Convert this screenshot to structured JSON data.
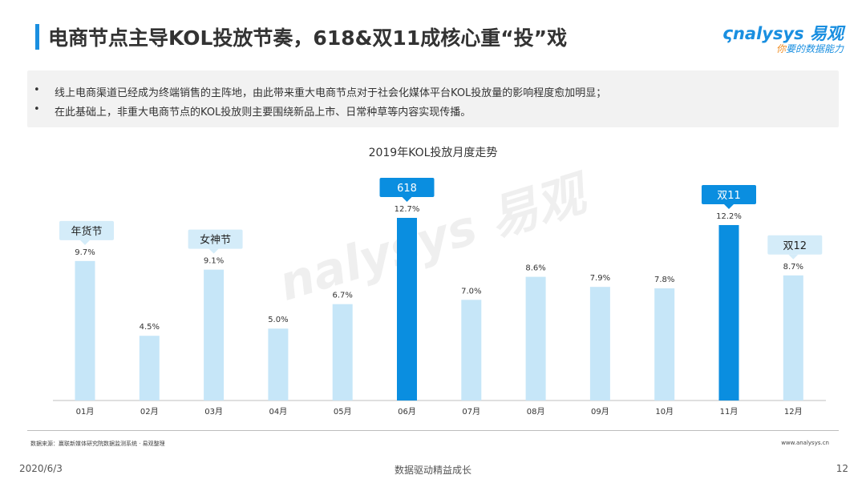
{
  "header": {
    "title": "电商节点主导KOL投放节奏，618&双11成核心重“投”戏",
    "logo_main": "nalysys 易观",
    "logo_sub_accent": "你",
    "logo_sub": "要的数据能力"
  },
  "summary": {
    "bullets": [
      "线上电商渠道已经成为终端销售的主阵地，由此带来重大电商节点对于社会化媒体平台KOL投放量的影响程度愈加明显；",
      "在此基础上，非重大电商节点的KOL投放则主要围绕新品上市、日常种草等内容实现传播。"
    ],
    "bullet_symbol": "•"
  },
  "chart_data": {
    "type": "bar",
    "title": "2019年KOL投放月度走势",
    "categories": [
      "01月",
      "02月",
      "03月",
      "04月",
      "05月",
      "06月",
      "07月",
      "08月",
      "09月",
      "10月",
      "11月",
      "12月"
    ],
    "values": [
      9.7,
      4.5,
      9.1,
      5.0,
      6.7,
      12.7,
      7.0,
      8.6,
      7.9,
      7.8,
      12.2,
      8.7
    ],
    "value_labels": [
      "9.7%",
      "4.5%",
      "9.1%",
      "5.0%",
      "6.7%",
      "12.7%",
      "7.0%",
      "8.6%",
      "7.9%",
      "7.8%",
      "12.2%",
      "8.7%"
    ],
    "highlight": [
      "06月",
      "11月"
    ],
    "ylim": [
      0,
      13.5
    ],
    "colors": {
      "normal": "#c6e6f8",
      "highlight": "#0a8ee0",
      "callout_light": "#d4ecf9",
      "callout_dark": "#0a8ee0"
    },
    "callouts": [
      {
        "category": "01月",
        "text": "年货节",
        "style": "light"
      },
      {
        "category": "03月",
        "text": "女神节",
        "style": "light"
      },
      {
        "category": "06月",
        "text": "618",
        "style": "dark"
      },
      {
        "category": "11月",
        "text": "双11",
        "style": "dark"
      },
      {
        "category": "12月",
        "text": "双12",
        "style": "light"
      }
    ],
    "grid": false
  },
  "footer": {
    "source": "数据来源：赢联新媒体研究院数据监测系统 · 易观整理",
    "site": "www.analysys.cn",
    "date": "2020/6/3",
    "slogan": "数据驱动精益成长",
    "page": "12"
  }
}
